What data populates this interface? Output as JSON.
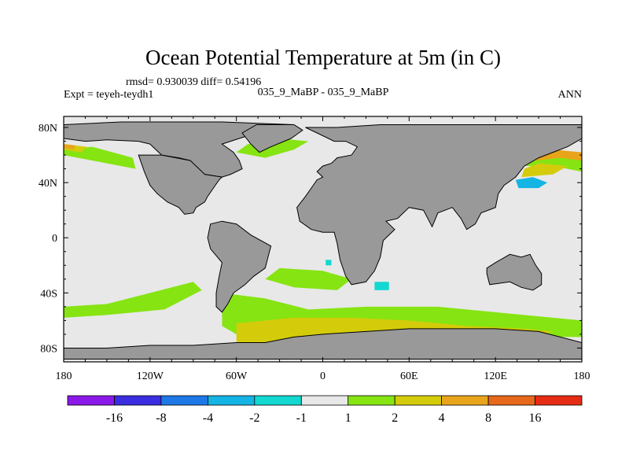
{
  "chart_data": {
    "type": "heatmap",
    "title": "Ocean Potential Temperature at 5m (in C)",
    "stats": "rmsd= 0.930039 diff= 0.54196",
    "left_label": "Expt = teyeh-teydh1",
    "center_label": "035_9_MaBP - 035_9_MaBP",
    "right_label": "ANN",
    "x_ticks": [
      {
        "lon": -180,
        "label": "180"
      },
      {
        "lon": -120,
        "label": "120W"
      },
      {
        "lon": -60,
        "label": "60W"
      },
      {
        "lon": 0,
        "label": "0"
      },
      {
        "lon": 60,
        "label": "60E"
      },
      {
        "lon": 120,
        "label": "120E"
      },
      {
        "lon": 180,
        "label": "180"
      }
    ],
    "y_ticks": [
      {
        "lat": 80,
        "label": "80N"
      },
      {
        "lat": 40,
        "label": "40N"
      },
      {
        "lat": 0,
        "label": "0"
      },
      {
        "lat": -40,
        "label": "40S"
      },
      {
        "lat": -80,
        "label": "80S"
      }
    ],
    "xlim": [
      -180,
      180
    ],
    "ylim": [
      -90,
      88
    ],
    "colorbar": {
      "boundaries": [
        "-16",
        "-8",
        "-4",
        "-2",
        "-1",
        "1",
        "2",
        "4",
        "8",
        "16"
      ],
      "colors": [
        "#8a18e8",
        "#3a2ee0",
        "#1e78e6",
        "#14b4e4",
        "#12d8d0",
        "#e8e8e8",
        "#86e412",
        "#d4cc0a",
        "#e8a41a",
        "#e6681a",
        "#e62c14"
      ]
    },
    "land_color": "#999999",
    "ocean_color": "#e8e8e8",
    "continents": [
      {
        "name": "north-america",
        "coords": [
          [
            -180,
            82
          ],
          [
            -180,
            72
          ],
          [
            -165,
            70
          ],
          [
            -150,
            71
          ],
          [
            -128,
            70
          ],
          [
            -120,
            68
          ],
          [
            -112,
            60
          ],
          [
            -100,
            58
          ],
          [
            -92,
            56
          ],
          [
            -88,
            50
          ],
          [
            -82,
            46
          ],
          [
            -70,
            44
          ],
          [
            -64,
            46
          ],
          [
            -56,
            50
          ],
          [
            -58,
            56
          ],
          [
            -62,
            62
          ],
          [
            -70,
            68
          ],
          [
            -58,
            72
          ],
          [
            -40,
            78
          ],
          [
            -20,
            82
          ],
          [
            -70,
            84
          ],
          [
            -140,
            84
          ]
        ]
      },
      {
        "name": "north-america-south",
        "coords": [
          [
            -128,
            60
          ],
          [
            -124,
            48
          ],
          [
            -120,
            38
          ],
          [
            -115,
            32
          ],
          [
            -108,
            26
          ],
          [
            -100,
            22
          ],
          [
            -96,
            17
          ],
          [
            -90,
            18
          ],
          [
            -88,
            22
          ],
          [
            -82,
            26
          ],
          [
            -80,
            30
          ],
          [
            -76,
            36
          ],
          [
            -72,
            42
          ],
          [
            -70,
            44
          ],
          [
            -82,
            46
          ],
          [
            -92,
            56
          ],
          [
            -112,
            60
          ]
        ]
      },
      {
        "name": "south-america",
        "coords": [
          [
            -78,
            10
          ],
          [
            -70,
            12
          ],
          [
            -60,
            10
          ],
          [
            -50,
            2
          ],
          [
            -36,
            -6
          ],
          [
            -38,
            -14
          ],
          [
            -40,
            -22
          ],
          [
            -48,
            -28
          ],
          [
            -54,
            -34
          ],
          [
            -62,
            -40
          ],
          [
            -66,
            -48
          ],
          [
            -70,
            -54
          ],
          [
            -74,
            -50
          ],
          [
            -74,
            -40
          ],
          [
            -72,
            -28
          ],
          [
            -70,
            -18
          ],
          [
            -78,
            -8
          ],
          [
            -80,
            0
          ]
        ]
      },
      {
        "name": "eurasia-africa",
        "coords": [
          [
            -12,
            80
          ],
          [
            10,
            80
          ],
          [
            40,
            82
          ],
          [
            80,
            82
          ],
          [
            120,
            82
          ],
          [
            160,
            82
          ],
          [
            180,
            82
          ],
          [
            180,
            72
          ],
          [
            170,
            66
          ],
          [
            160,
            62
          ],
          [
            150,
            58
          ],
          [
            140,
            52
          ],
          [
            134,
            44
          ],
          [
            126,
            38
          ],
          [
            122,
            32
          ],
          [
            120,
            22
          ],
          [
            110,
            18
          ],
          [
            106,
            10
          ],
          [
            100,
            6
          ],
          [
            96,
            14
          ],
          [
            90,
            22
          ],
          [
            80,
            18
          ],
          [
            76,
            8
          ],
          [
            70,
            20
          ],
          [
            60,
            22
          ],
          [
            52,
            14
          ],
          [
            44,
            12
          ],
          [
            50,
            6
          ],
          [
            42,
            -2
          ],
          [
            40,
            -14
          ],
          [
            36,
            -24
          ],
          [
            30,
            -32
          ],
          [
            20,
            -34
          ],
          [
            16,
            -28
          ],
          [
            12,
            -16
          ],
          [
            10,
            -4
          ],
          [
            8,
            4
          ],
          [
            0,
            4
          ],
          [
            -8,
            6
          ],
          [
            -16,
            12
          ],
          [
            -18,
            22
          ],
          [
            -12,
            30
          ],
          [
            -8,
            36
          ],
          [
            -4,
            42
          ],
          [
            0,
            44
          ],
          [
            -4,
            48
          ],
          [
            0,
            52
          ],
          [
            6,
            54
          ],
          [
            10,
            58
          ],
          [
            20,
            60
          ],
          [
            24,
            66
          ],
          [
            16,
            70
          ],
          [
            8,
            70
          ],
          [
            -4,
            76
          ]
        ]
      },
      {
        "name": "greenland-island",
        "coords": [
          [
            -30,
            82
          ],
          [
            -20,
            82
          ],
          [
            -14,
            78
          ],
          [
            -22,
            72
          ],
          [
            -36,
            66
          ],
          [
            -44,
            62
          ],
          [
            -50,
            68
          ],
          [
            -56,
            76
          ],
          [
            -46,
            82
          ]
        ]
      },
      {
        "name": "australia",
        "coords": [
          [
            114,
            -22
          ],
          [
            120,
            -18
          ],
          [
            130,
            -12
          ],
          [
            138,
            -14
          ],
          [
            144,
            -12
          ],
          [
            148,
            -20
          ],
          [
            152,
            -26
          ],
          [
            152,
            -34
          ],
          [
            146,
            -38
          ],
          [
            138,
            -36
          ],
          [
            130,
            -32
          ],
          [
            116,
            -34
          ],
          [
            114,
            -26
          ]
        ]
      },
      {
        "name": "antarctica",
        "coords": [
          [
            -180,
            -80
          ],
          [
            -150,
            -80
          ],
          [
            -120,
            -78
          ],
          [
            -90,
            -78
          ],
          [
            -60,
            -76
          ],
          [
            -40,
            -76
          ],
          [
            -20,
            -72
          ],
          [
            0,
            -70
          ],
          [
            30,
            -68
          ],
          [
            60,
            -66
          ],
          [
            90,
            -66
          ],
          [
            120,
            -66
          ],
          [
            150,
            -68
          ],
          [
            165,
            -72
          ],
          [
            180,
            -76
          ],
          [
            180,
            -88
          ],
          [
            -180,
            -88
          ]
        ]
      }
    ],
    "anomalies": [
      {
        "bin": 6,
        "name": "southern-ocean-band",
        "coords": [
          [
            -70,
            -40
          ],
          [
            -40,
            -44
          ],
          [
            -10,
            -52
          ],
          [
            30,
            -50
          ],
          [
            80,
            -50
          ],
          [
            120,
            -54
          ],
          [
            160,
            -58
          ],
          [
            180,
            -60
          ],
          [
            180,
            -72
          ],
          [
            140,
            -72
          ],
          [
            80,
            -68
          ],
          [
            30,
            -70
          ],
          [
            -20,
            -74
          ],
          [
            -50,
            -76
          ],
          [
            -70,
            -64
          ]
        ]
      },
      {
        "bin": 7,
        "name": "southern-ocean-core",
        "coords": [
          [
            -60,
            -62
          ],
          [
            -20,
            -58
          ],
          [
            20,
            -58
          ],
          [
            60,
            -60
          ],
          [
            100,
            -64
          ],
          [
            140,
            -66
          ],
          [
            160,
            -68
          ],
          [
            140,
            -74
          ],
          [
            80,
            -74
          ],
          [
            20,
            -76
          ],
          [
            -30,
            -78
          ],
          [
            -60,
            -76
          ]
        ]
      },
      {
        "bin": 6,
        "name": "south-atlantic-band",
        "coords": [
          [
            -30,
            -22
          ],
          [
            0,
            -24
          ],
          [
            20,
            -30
          ],
          [
            10,
            -38
          ],
          [
            -20,
            -36
          ],
          [
            -40,
            -30
          ]
        ]
      },
      {
        "bin": 6,
        "name": "southeast-pacific-band",
        "coords": [
          [
            -150,
            -48
          ],
          [
            -120,
            -40
          ],
          [
            -90,
            -32
          ],
          [
            -84,
            -38
          ],
          [
            -110,
            -52
          ],
          [
            -150,
            -56
          ],
          [
            -180,
            -58
          ],
          [
            -180,
            -50
          ]
        ]
      },
      {
        "bin": 6,
        "name": "north-pacific-band",
        "coords": [
          [
            140,
            52
          ],
          [
            160,
            52
          ],
          [
            180,
            48
          ],
          [
            180,
            62
          ],
          [
            160,
            62
          ],
          [
            144,
            58
          ]
        ]
      },
      {
        "bin": 8,
        "name": "northwest-pacific-warm",
        "coords": [
          [
            148,
            56
          ],
          [
            165,
            58
          ],
          [
            180,
            56
          ],
          [
            180,
            62
          ],
          [
            160,
            64
          ],
          [
            150,
            60
          ]
        ]
      },
      {
        "bin": 7,
        "name": "kuroshio-warm",
        "coords": [
          [
            138,
            44
          ],
          [
            160,
            46
          ],
          [
            170,
            52
          ],
          [
            150,
            54
          ],
          [
            140,
            50
          ]
        ]
      },
      {
        "bin": 3,
        "name": "northwest-pacific-cool",
        "coords": [
          [
            136,
            36
          ],
          [
            150,
            36
          ],
          [
            156,
            40
          ],
          [
            146,
            44
          ],
          [
            134,
            42
          ]
        ]
      },
      {
        "bin": 6,
        "name": "north-atlantic-band",
        "coords": [
          [
            -60,
            62
          ],
          [
            -40,
            58
          ],
          [
            -20,
            64
          ],
          [
            -10,
            70
          ],
          [
            -30,
            72
          ],
          [
            -52,
            68
          ]
        ]
      },
      {
        "bin": 6,
        "name": "northeast-pacific-band",
        "coords": [
          [
            -180,
            60
          ],
          [
            -150,
            54
          ],
          [
            -130,
            50
          ],
          [
            -132,
            58
          ],
          [
            -160,
            66
          ],
          [
            -180,
            64
          ]
        ]
      },
      {
        "bin": 7,
        "name": "bering-warm",
        "coords": [
          [
            -180,
            64
          ],
          [
            -168,
            62
          ],
          [
            -164,
            66
          ],
          [
            -180,
            68
          ]
        ]
      },
      {
        "bin": 8,
        "name": "bering-core",
        "coords": [
          [
            -180,
            65
          ],
          [
            -173,
            64
          ],
          [
            -172,
            67
          ],
          [
            -180,
            68
          ]
        ]
      },
      {
        "bin": 4,
        "name": "indian-ocean-cool",
        "coords": [
          [
            36,
            -32
          ],
          [
            46,
            -32
          ],
          [
            46,
            -38
          ],
          [
            36,
            -38
          ]
        ]
      },
      {
        "bin": 4,
        "name": "equatorial-atlantic-cool",
        "coords": [
          [
            2,
            -16
          ],
          [
            6,
            -16
          ],
          [
            6,
            -20
          ],
          [
            2,
            -20
          ]
        ]
      },
      {
        "bin": 8,
        "name": "ross-sea-warm",
        "coords": [
          [
            116,
            -74
          ],
          [
            140,
            -74
          ],
          [
            150,
            -80
          ],
          [
            120,
            -80
          ]
        ]
      },
      {
        "bin": 3,
        "name": "antarctic-coast-cool",
        "coords": [
          [
            -176,
            -80
          ],
          [
            -166,
            -80
          ],
          [
            -166,
            -82
          ],
          [
            -176,
            -82
          ]
        ]
      }
    ]
  }
}
